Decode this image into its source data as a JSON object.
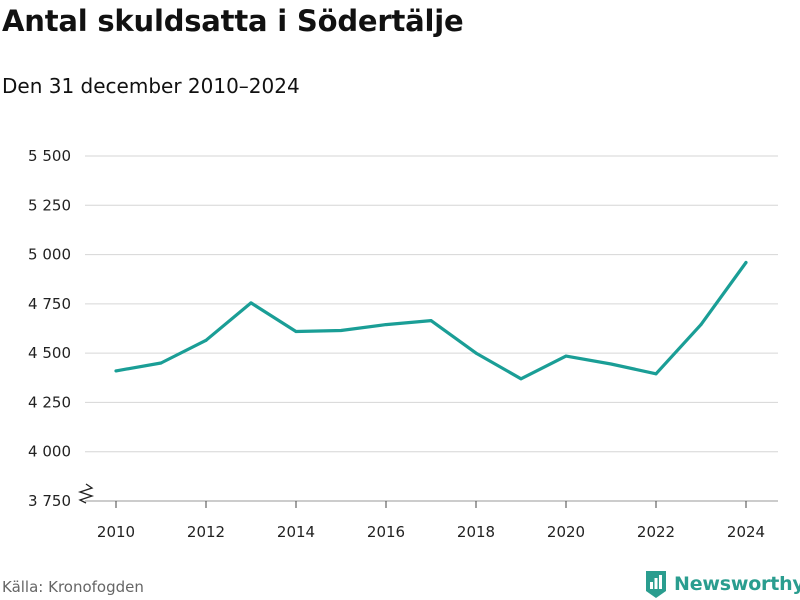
{
  "chart_data": {
    "type": "line",
    "title": "Antal skuldsatta i Södertälje",
    "subtitle": "Den 31 december 2010–2024",
    "xlabel": "",
    "ylabel": "",
    "x": [
      2010,
      2011,
      2012,
      2013,
      2014,
      2015,
      2016,
      2017,
      2018,
      2019,
      2020,
      2021,
      2022,
      2023,
      2024
    ],
    "series": [
      {
        "name": "Antal skuldsatta",
        "color": "#1a9e96",
        "values": [
          4410,
          4450,
          4565,
          4755,
          4610,
          4615,
          4645,
          4665,
          4500,
          4370,
          4485,
          4445,
          4395,
          4645,
          4960
        ]
      }
    ],
    "x_ticks": [
      "2010",
      "2012",
      "2014",
      "2016",
      "2018",
      "2020",
      "2022",
      "2024"
    ],
    "y_ticks": [
      "3 750",
      "4 000",
      "4 250",
      "4 500",
      "4 750",
      "5 000",
      "5 250",
      "5 500"
    ],
    "y_tick_values": [
      3750,
      4000,
      4250,
      4500,
      4750,
      5000,
      5250,
      5500
    ],
    "ylim": [
      3750,
      5500
    ],
    "xlim": [
      2010,
      2024
    ],
    "axis_break": true,
    "grid": true
  },
  "footer": {
    "source": "Källa: Kronofogden",
    "brand": "Newsworthy"
  },
  "colors": {
    "line": "#1a9e96",
    "grid": "#d6d6d6",
    "brand": "#2a9d8f"
  }
}
